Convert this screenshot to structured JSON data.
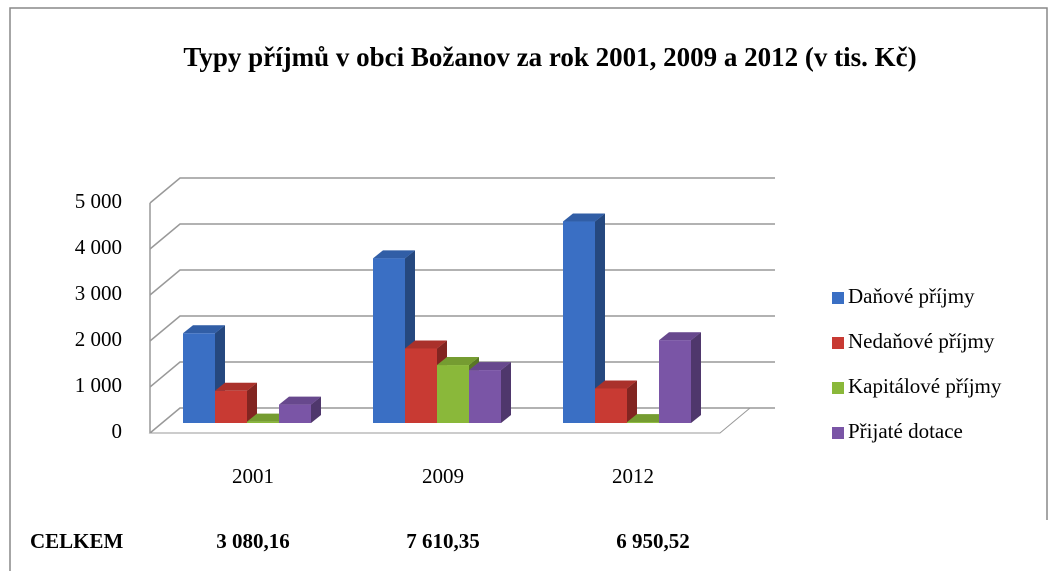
{
  "chart_data": {
    "type": "bar",
    "title": "Typy příjmů v obci Božanov za rok 2001, 2009 a 2012 (v tis. Kč)",
    "categories": [
      "2001",
      "2009",
      "2012"
    ],
    "series": [
      {
        "name": "Daňové příjmy",
        "color": "#3a6fc4",
        "values": [
          1950,
          3580,
          4380
        ]
      },
      {
        "name": "Nedaňové příjmy",
        "color": "#c83a33",
        "values": [
          700,
          1620,
          750
        ]
      },
      {
        "name": "Kapitálové příjmy",
        "color": "#8ab83a",
        "values": [
          30,
          1260,
          20
        ]
      },
      {
        "name": "Přijaté dotace",
        "color": "#7a55a6",
        "values": [
          400,
          1150,
          1800
        ]
      }
    ],
    "ylim": [
      0,
      5000
    ],
    "yticks": [
      0,
      {
        "value": 1000,
        "label": "1 000"
      },
      {
        "value": 2000,
        "label": "2 000"
      },
      {
        "value": 3000,
        "label": "3 000"
      },
      {
        "value": 4000,
        "label": "4 000"
      },
      {
        "value": 5000,
        "label": "5 000"
      }
    ],
    "grid": true,
    "legend": "right",
    "totals_label": "CELKEM",
    "totals": [
      "3 080,16",
      "7 610,35",
      "6 950,52"
    ]
  }
}
